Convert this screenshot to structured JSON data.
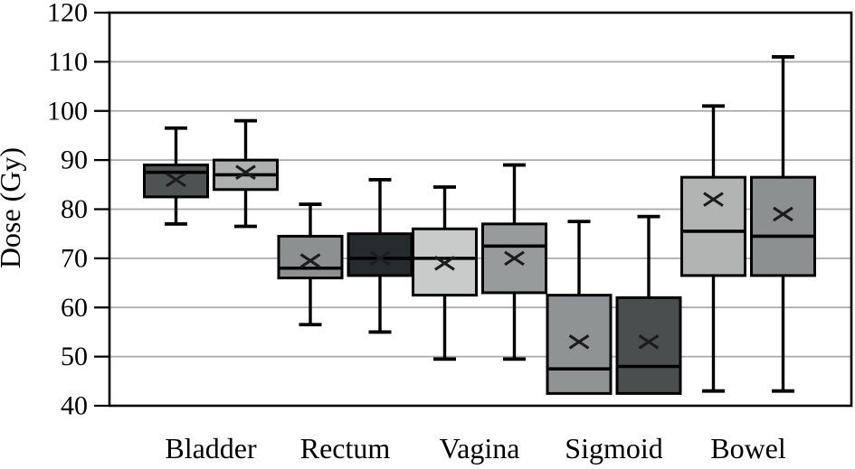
{
  "chart_data": {
    "type": "boxplot",
    "title": "",
    "ylabel": "Dose (Gy)",
    "xlabel": "",
    "ylim": [
      40,
      120
    ],
    "yticks": [
      40,
      50,
      60,
      70,
      80,
      90,
      100,
      110,
      120
    ],
    "grid": "horizontal",
    "legend": "none",
    "categories": [
      "Bladder",
      "Rectum",
      "Vagina",
      "Sigmoid",
      "Bowel"
    ],
    "groups": [
      {
        "category": "Bladder",
        "boxes": [
          {
            "whisker_low": 77,
            "q1": 82.5,
            "median": 87.5,
            "mean": 86,
            "q3": 89,
            "whisker_high": 96.5,
            "fill": "#4F5253"
          },
          {
            "whisker_low": 76.5,
            "q1": 84,
            "median": 87,
            "mean": 87.5,
            "q3": 90,
            "whisker_high": 98,
            "fill": "#AEB0B0"
          }
        ]
      },
      {
        "category": "Rectum",
        "boxes": [
          {
            "whisker_low": 56.5,
            "q1": 66,
            "median": 68,
            "mean": 69.5,
            "q3": 74.5,
            "whisker_high": 81,
            "fill": "#8D9091"
          },
          {
            "whisker_low": 55,
            "q1": 66.5,
            "median": 70,
            "mean": 70,
            "q3": 75,
            "whisker_high": 86,
            "fill": "#262B2D"
          }
        ]
      },
      {
        "category": "Vagina",
        "boxes": [
          {
            "whisker_low": 49.5,
            "q1": 62.5,
            "median": 70,
            "mean": 69,
            "q3": 76,
            "whisker_high": 84.5,
            "fill": "#C9CBCB"
          },
          {
            "whisker_low": 49.5,
            "q1": 63,
            "median": 72.5,
            "mean": 70,
            "q3": 77,
            "whisker_high": 89,
            "fill": "#989B9C"
          }
        ]
      },
      {
        "category": "Sigmoid",
        "boxes": [
          {
            "whisker_low": 42.5,
            "q1": 42.5,
            "median": 47.5,
            "mean": 53,
            "q3": 62.5,
            "whisker_high": 77.5,
            "fill": "#909394"
          },
          {
            "whisker_low": 42.5,
            "q1": 42.5,
            "median": 48,
            "mean": 53,
            "q3": 62,
            "whisker_high": 78.5,
            "fill": "#4A4E4F"
          }
        ]
      },
      {
        "category": "Bowel",
        "boxes": [
          {
            "whisker_low": 43,
            "q1": 66.5,
            "median": 75.5,
            "mean": 82,
            "q3": 86.5,
            "whisker_high": 101,
            "fill": "#B2B4B4"
          },
          {
            "whisker_low": 43,
            "q1": 66.5,
            "median": 74.5,
            "mean": 79,
            "q3": 86.5,
            "whisker_high": 111,
            "fill": "#8D9091"
          }
        ]
      }
    ],
    "colors": {
      "axis": "#000000",
      "grid": "#A9A9A9",
      "box_border": "#000000",
      "mean_marker": "#1C1C1C",
      "background": "#FFFFFF"
    }
  }
}
